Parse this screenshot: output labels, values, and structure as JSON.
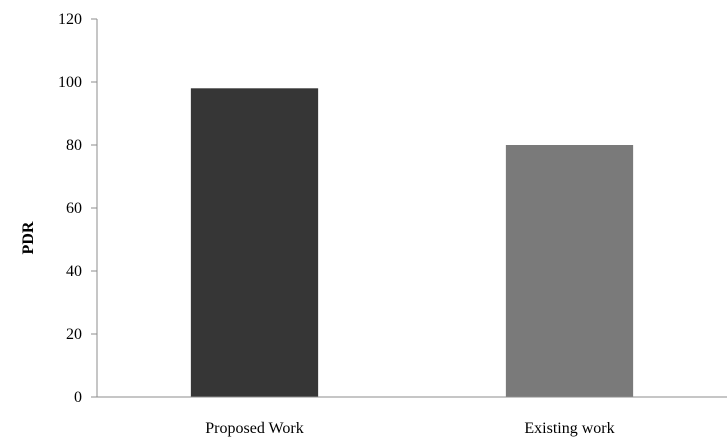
{
  "chart_data": {
    "type": "bar",
    "title": "",
    "xlabel": "",
    "ylabel": "PDR",
    "categories": [
      "Proposed Work",
      "Existing work"
    ],
    "values": [
      98,
      80
    ],
    "bar_colors": [
      "#363636",
      "#7a7a7a"
    ],
    "ylim": [
      0,
      120
    ],
    "yticks": [
      0,
      20,
      40,
      60,
      80,
      100,
      120
    ],
    "grid": false,
    "legend": "none"
  }
}
